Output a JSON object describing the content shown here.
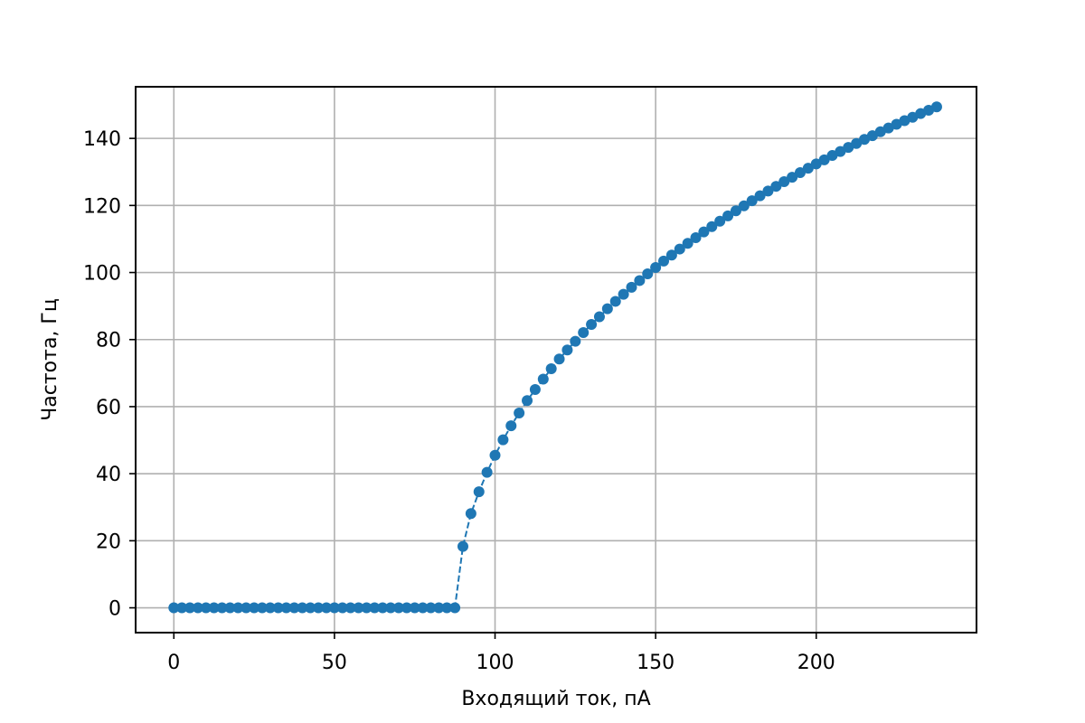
{
  "chart_data": {
    "type": "line",
    "title": "",
    "xlabel": "Входящий ток, пА",
    "ylabel": "Частота, Гц",
    "xlim": [
      -11.9,
      249.9
    ],
    "ylim": [
      -7.4,
      155.4
    ],
    "xticks": [
      0,
      50,
      100,
      150,
      200
    ],
    "yticks": [
      0,
      20,
      40,
      60,
      80,
      100,
      120,
      140
    ],
    "grid": true,
    "legend": "none",
    "series": [
      {
        "color": "#1f77b4",
        "line_style": "dashed",
        "marker": "circle",
        "x": [
          0,
          2.5,
          5,
          7.5,
          10,
          12.5,
          15,
          17.5,
          20,
          22.5,
          25,
          27.5,
          30,
          32.5,
          35,
          37.5,
          40,
          42.5,
          45,
          47.5,
          50,
          52.5,
          55,
          57.5,
          60,
          62.5,
          65,
          67.5,
          70,
          72.5,
          75,
          77.5,
          80,
          82.5,
          85,
          87.5,
          90,
          92.5,
          95,
          97.5,
          100,
          102.5,
          105,
          107.5,
          110,
          112.5,
          115,
          117.5,
          120,
          122.5,
          125,
          127.5,
          130,
          132.5,
          135,
          137.5,
          140,
          142.5,
          145,
          147.5,
          150,
          152.5,
          155,
          157.5,
          160,
          162.5,
          165,
          167.5,
          170,
          172.5,
          175,
          177.5,
          180,
          182.5,
          185,
          187.5,
          190,
          192.5,
          195,
          197.5,
          200,
          202.5,
          205,
          207.5,
          210,
          212.5,
          215,
          217.5,
          220,
          222.5,
          225,
          227.5,
          230,
          232.5,
          235,
          237.5
        ],
        "y": [
          0,
          0,
          0,
          0,
          0,
          0,
          0,
          0,
          0,
          0,
          0,
          0,
          0,
          0,
          0,
          0,
          0,
          0,
          0,
          0,
          0,
          0,
          0,
          0,
          0,
          0,
          0,
          0,
          0,
          0,
          0,
          0,
          0,
          0,
          0,
          0,
          18.3,
          28.1,
          34.6,
          40.4,
          45.5,
          50.1,
          54.3,
          58.1,
          61.8,
          65.1,
          68.2,
          71.3,
          74.2,
          76.9,
          79.5,
          82.1,
          84.5,
          86.8,
          89.2,
          91.4,
          93.5,
          95.6,
          97.6,
          99.6,
          101.5,
          103.4,
          105.2,
          107.0,
          108.7,
          110.4,
          112.1,
          113.7,
          115.3,
          116.9,
          118.4,
          119.9,
          121.4,
          122.9,
          124.3,
          125.7,
          127.1,
          128.4,
          129.8,
          131.1,
          132.4,
          133.6,
          134.9,
          136.1,
          137.3,
          138.5,
          139.7,
          140.8,
          142.0,
          143.1,
          144.2,
          145.3,
          146.3,
          147.4,
          148.4,
          149.4
        ]
      }
    ]
  }
}
